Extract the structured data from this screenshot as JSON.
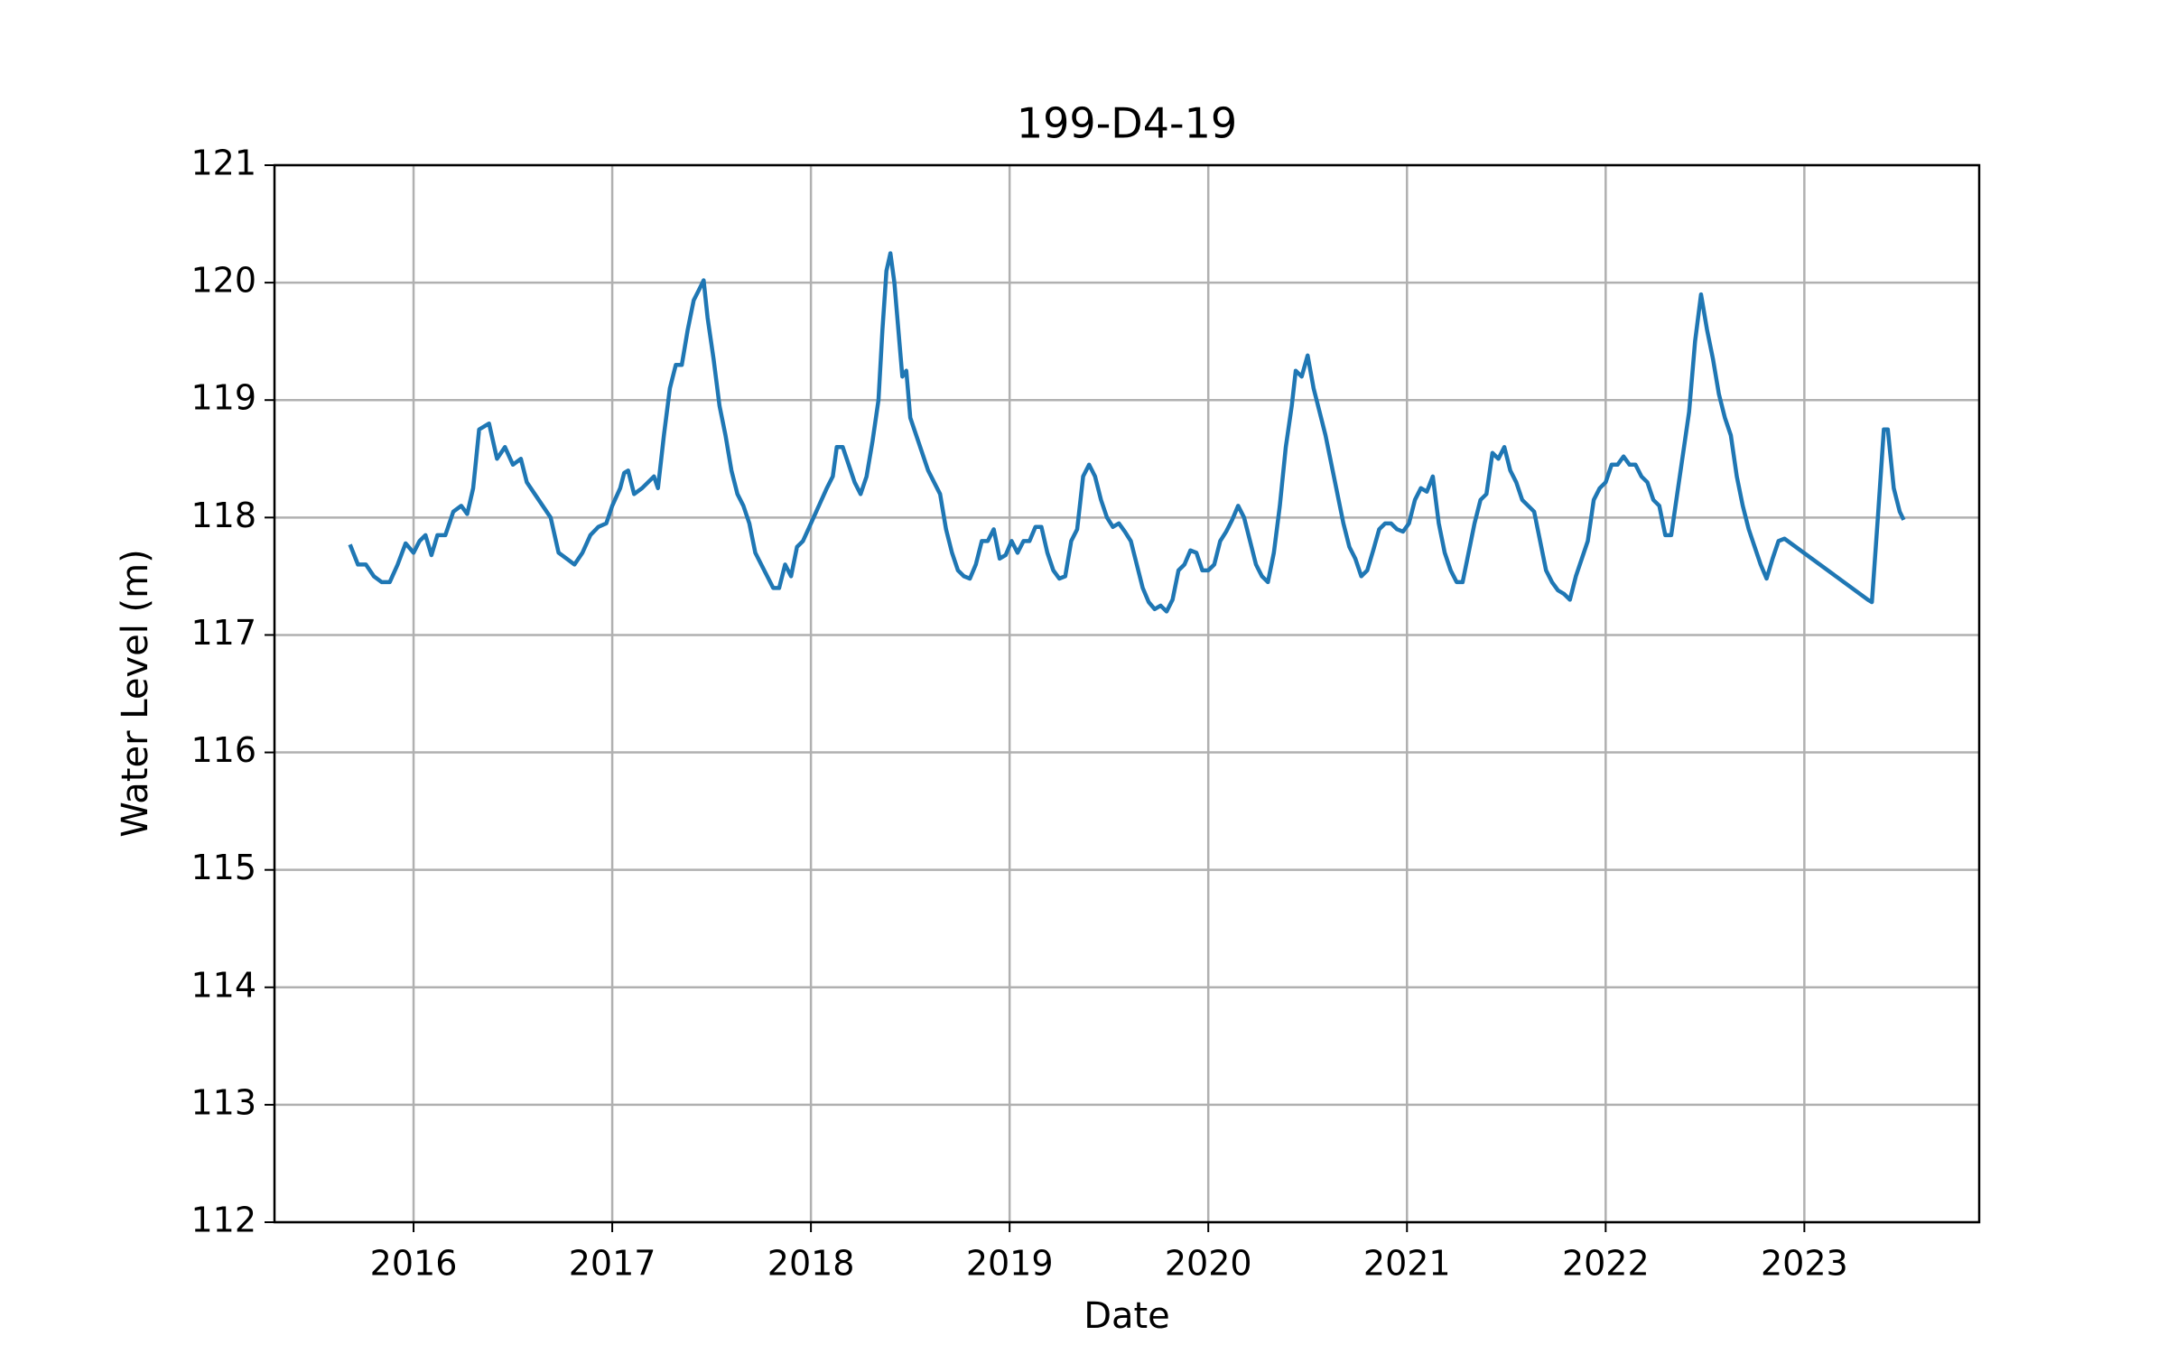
{
  "chart_data": {
    "type": "line",
    "title": "199-D4-19",
    "x_label": "Date",
    "y_label": "Water Level (m)",
    "x": [
      2015.68,
      2015.72,
      2015.76,
      2015.8,
      2015.84,
      2015.88,
      2015.92,
      2015.96,
      2016.0,
      2016.03,
      2016.06,
      2016.09,
      2016.12,
      2016.16,
      2016.2,
      2016.24,
      2016.27,
      2016.3,
      2016.33,
      2016.36,
      2016.38,
      2016.42,
      2016.46,
      2016.5,
      2016.54,
      2016.57,
      2016.61,
      2016.65,
      2016.69,
      2016.73,
      2016.77,
      2016.81,
      2016.85,
      2016.89,
      2016.93,
      2016.97,
      2017.0,
      2017.04,
      2017.06,
      2017.08,
      2017.11,
      2017.15,
      2017.18,
      2017.21,
      2017.23,
      2017.26,
      2017.29,
      2017.32,
      2017.35,
      2017.38,
      2017.41,
      2017.44,
      2017.46,
      2017.48,
      2017.51,
      2017.54,
      2017.57,
      2017.6,
      2017.63,
      2017.66,
      2017.69,
      2017.72,
      2017.75,
      2017.78,
      2017.81,
      2017.84,
      2017.87,
      2017.9,
      2017.93,
      2017.96,
      2018.08,
      2018.11,
      2018.13,
      2018.16,
      2018.19,
      2018.22,
      2018.25,
      2018.28,
      2018.31,
      2018.34,
      2018.36,
      2018.38,
      2018.4,
      2018.42,
      2018.44,
      2018.46,
      2018.48,
      2018.5,
      2018.53,
      2018.56,
      2018.59,
      2018.62,
      2018.65,
      2018.68,
      2018.71,
      2018.74,
      2018.77,
      2018.8,
      2018.83,
      2018.86,
      2018.89,
      2018.92,
      2018.95,
      2018.98,
      2019.01,
      2019.04,
      2019.07,
      2019.1,
      2019.13,
      2019.16,
      2019.19,
      2019.22,
      2019.25,
      2019.28,
      2019.31,
      2019.34,
      2019.37,
      2019.4,
      2019.43,
      2019.46,
      2019.49,
      2019.52,
      2019.55,
      2019.58,
      2019.61,
      2019.64,
      2019.67,
      2019.7,
      2019.73,
      2019.76,
      2019.79,
      2019.82,
      2019.85,
      2019.88,
      2019.91,
      2019.94,
      2019.97,
      2020.0,
      2020.03,
      2020.06,
      2020.09,
      2020.12,
      2020.15,
      2020.18,
      2020.21,
      2020.24,
      2020.27,
      2020.3,
      2020.33,
      2020.36,
      2020.39,
      2020.42,
      2020.44,
      2020.47,
      2020.5,
      2020.53,
      2020.56,
      2020.59,
      2020.62,
      2020.65,
      2020.68,
      2020.71,
      2020.74,
      2020.77,
      2020.8,
      2020.83,
      2020.86,
      2020.89,
      2020.92,
      2020.95,
      2020.98,
      2021.01,
      2021.04,
      2021.07,
      2021.1,
      2021.13,
      2021.16,
      2021.19,
      2021.22,
      2021.25,
      2021.28,
      2021.31,
      2021.34,
      2021.37,
      2021.4,
      2021.43,
      2021.46,
      2021.49,
      2021.52,
      2021.55,
      2021.58,
      2021.61,
      2021.64,
      2021.67,
      2021.7,
      2021.73,
      2021.76,
      2021.79,
      2021.82,
      2021.85,
      2021.88,
      2021.91,
      2021.94,
      2021.97,
      2022.0,
      2022.03,
      2022.06,
      2022.09,
      2022.12,
      2022.15,
      2022.18,
      2022.21,
      2022.24,
      2022.27,
      2022.3,
      2022.33,
      2022.36,
      2022.39,
      2022.42,
      2022.45,
      2022.48,
      2022.51,
      2022.54,
      2022.57,
      2022.6,
      2022.63,
      2022.66,
      2022.69,
      2022.72,
      2022.75,
      2022.78,
      2022.81,
      2022.84,
      2022.87,
      2022.9,
      2023.32,
      2023.34,
      2023.37,
      2023.4,
      2023.42,
      2023.45,
      2023.48,
      2023.5
    ],
    "values": [
      117.77,
      117.6,
      117.6,
      117.5,
      117.45,
      117.45,
      117.6,
      117.78,
      117.7,
      117.8,
      117.85,
      117.68,
      117.85,
      117.85,
      118.05,
      118.1,
      118.03,
      118.25,
      118.75,
      118.78,
      118.8,
      118.5,
      118.6,
      118.45,
      118.5,
      118.3,
      118.2,
      118.1,
      118.0,
      117.7,
      117.65,
      117.6,
      117.7,
      117.85,
      117.92,
      117.95,
      118.1,
      118.25,
      118.38,
      118.4,
      118.2,
      118.25,
      118.3,
      118.35,
      118.25,
      118.7,
      119.1,
      119.3,
      119.3,
      119.6,
      119.85,
      119.95,
      120.02,
      119.7,
      119.35,
      118.95,
      118.7,
      118.4,
      118.2,
      118.1,
      117.95,
      117.7,
      117.6,
      117.5,
      117.4,
      117.4,
      117.6,
      117.5,
      117.75,
      117.8,
      118.25,
      118.35,
      118.6,
      118.6,
      118.45,
      118.3,
      118.2,
      118.35,
      118.65,
      119.0,
      119.6,
      120.1,
      120.25,
      120.0,
      119.6,
      119.2,
      119.25,
      118.85,
      118.7,
      118.55,
      118.4,
      118.3,
      118.2,
      117.9,
      117.7,
      117.55,
      117.5,
      117.48,
      117.6,
      117.8,
      117.8,
      117.9,
      117.65,
      117.68,
      117.8,
      117.7,
      117.8,
      117.8,
      117.92,
      117.92,
      117.7,
      117.55,
      117.48,
      117.5,
      117.8,
      117.9,
      118.35,
      118.45,
      118.35,
      118.15,
      118.0,
      117.92,
      117.95,
      117.88,
      117.8,
      117.6,
      117.4,
      117.28,
      117.22,
      117.25,
      117.2,
      117.3,
      117.55,
      117.6,
      117.72,
      117.7,
      117.55,
      117.55,
      117.6,
      117.8,
      117.88,
      117.98,
      118.1,
      118.0,
      117.8,
      117.6,
      117.5,
      117.45,
      117.7,
      118.1,
      118.6,
      118.95,
      119.25,
      119.2,
      119.38,
      119.1,
      118.9,
      118.7,
      118.45,
      118.2,
      117.95,
      117.75,
      117.65,
      117.5,
      117.55,
      117.72,
      117.9,
      117.95,
      117.95,
      117.9,
      117.88,
      117.95,
      118.15,
      118.25,
      118.22,
      118.35,
      117.95,
      117.7,
      117.55,
      117.45,
      117.45,
      117.7,
      117.95,
      118.15,
      118.2,
      118.55,
      118.5,
      118.6,
      118.4,
      118.3,
      118.15,
      118.1,
      118.05,
      117.8,
      117.55,
      117.45,
      117.38,
      117.35,
      117.3,
      117.5,
      117.65,
      117.8,
      118.15,
      118.25,
      118.3,
      118.45,
      118.45,
      118.52,
      118.45,
      118.45,
      118.35,
      118.3,
      118.15,
      118.1,
      117.85,
      117.85,
      118.2,
      118.55,
      118.9,
      119.5,
      119.9,
      119.6,
      119.35,
      119.05,
      118.85,
      118.7,
      118.35,
      118.1,
      117.9,
      117.75,
      117.6,
      117.48,
      117.65,
      117.8,
      117.82,
      117.3,
      117.28,
      118.0,
      118.75,
      118.75,
      118.25,
      118.05,
      117.98
    ],
    "color": "#1f77b4",
    "xlim": [
      2015.3,
      2023.88
    ],
    "xticks": [
      2016,
      2017,
      2018,
      2019,
      2020,
      2021,
      2022,
      2023
    ],
    "ylim": [
      112,
      121
    ],
    "yticks": [
      112,
      113,
      114,
      115,
      116,
      117,
      118,
      119,
      120,
      121
    ],
    "grid": true
  }
}
